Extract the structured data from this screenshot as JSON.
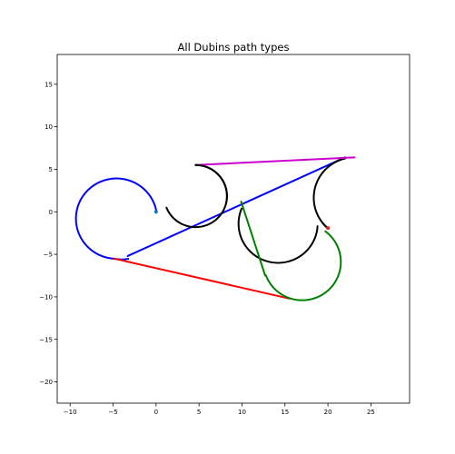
{
  "chart_data": {
    "type": "line",
    "title": "All Dubins path types",
    "xlabel": "",
    "ylabel": "",
    "xlim": [
      -11.5,
      29.5
    ],
    "ylim": [
      -22.5,
      18.5
    ],
    "x_ticks": [
      -10,
      -5,
      0,
      5,
      10,
      15,
      20,
      25
    ],
    "y_ticks": [
      -20,
      -15,
      -10,
      -5,
      0,
      5,
      10,
      15
    ],
    "grid": false,
    "legend": "none",
    "series": [
      {
        "type": "arc",
        "color": "#0000ff",
        "center": [
          -4.6,
          -0.8
        ],
        "radius": 4.72,
        "from_point": [
          0,
          0
        ],
        "to_point": [
          -4.9,
          -5.5
        ],
        "sweep": "ccw"
      },
      {
        "type": "arc",
        "color": "#0000ff",
        "center": [
          -4.0,
          -1.6
        ],
        "radius": 4.0,
        "from_point": [
          -4.9,
          -5.5
        ],
        "to_point": [
          -3.3,
          -5.2
        ],
        "sweep": "ccw"
      },
      {
        "type": "line",
        "color": "#0000ff",
        "points": [
          [
            -3.3,
            -5.2
          ],
          [
            22.0,
            6.4
          ]
        ]
      },
      {
        "type": "arc",
        "color": "#000000",
        "center": [
          23.1,
          1.65
        ],
        "radius": 4.75,
        "from_point": [
          22.0,
          6.4
        ],
        "to_point": [
          20.0,
          -1.9
        ],
        "sweep": "ccw"
      },
      {
        "type": "line",
        "color": "#cc00cc",
        "points": [
          [
            4.6,
            5.5
          ],
          [
            23.1,
            6.4
          ]
        ]
      },
      {
        "type": "arc",
        "color": "#000000",
        "center": [
          4.6,
          1.85
        ],
        "radius": 3.65,
        "from_point": [
          0,
          0
        ],
        "to_point": [
          4.6,
          5.5
        ],
        "sweep": "ccw"
      },
      {
        "type": "arc",
        "color": "#000000",
        "center": [
          4.6,
          1.85
        ],
        "radius": 3.65,
        "from_point": [
          4.6,
          5.5
        ],
        "to_point": [
          9.9,
          0.4
        ],
        "sweep": "cw"
      },
      {
        "type": "arc",
        "color": "#000000",
        "center": [
          14.2,
          -1.4
        ],
        "radius": 4.6,
        "from_point": [
          9.9,
          0.4
        ],
        "to_point": [
          19.0,
          -1.7
        ],
        "sweep": "ccw"
      },
      {
        "type": "arc",
        "color": "#000000",
        "center": [
          23.1,
          1.65
        ],
        "radius": 4.75,
        "from_point": [
          19.0,
          -1.7
        ],
        "to_point": [
          20.0,
          -1.9
        ],
        "sweep": "ccw"
      },
      {
        "type": "line",
        "color": "#ff0000",
        "points": [
          [
            -4.9,
            -5.5
          ],
          [
            15.5,
            -10.2
          ]
        ]
      },
      {
        "type": "arc",
        "color": "#008000",
        "center": [
          17.0,
          -5.9
        ],
        "radius": 4.5,
        "from_point": [
          15.5,
          -10.2
        ],
        "to_point": [
          20.0,
          -1.9
        ],
        "sweep": "ccw"
      },
      {
        "type": "arc",
        "color": "#008000",
        "center": [
          17.0,
          -5.9
        ],
        "radius": 4.5,
        "from_point": [
          15.5,
          -10.2
        ],
        "to_point": [
          12.7,
          -7.5
        ],
        "sweep": "cw"
      },
      {
        "type": "line",
        "color": "#008000",
        "points": [
          [
            12.7,
            -7.5
          ],
          [
            9.9,
            1.2
          ]
        ]
      }
    ],
    "markers": [
      {
        "x": 0.0,
        "y": 0.0,
        "color": "#1f77b4"
      },
      {
        "x": 20.0,
        "y": -1.9,
        "color": "#d62728"
      }
    ]
  }
}
